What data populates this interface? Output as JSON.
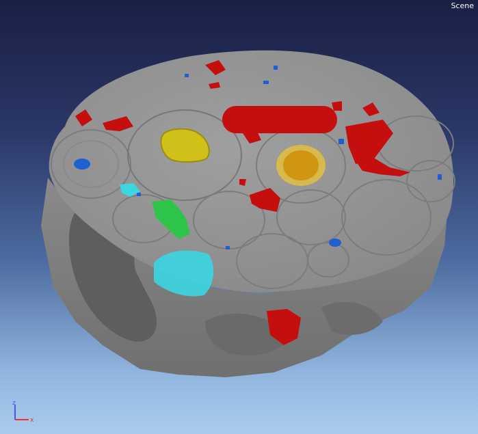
{
  "viewer": {
    "scene_label": "Scene",
    "background_top": "#1a1f45",
    "background_bottom": "#a9cbee"
  },
  "object": {
    "description_colors": {
      "body": "#9a9a9a",
      "shadow": "#5b5b5b",
      "red": "#c80f0f",
      "blue": "#1e5fd0",
      "yellow": "#d4c21a",
      "orange": "#d49a10",
      "green": "#2ec24a",
      "cyan": "#37d9e6"
    }
  },
  "axis_triad": {
    "z_label": "z",
    "x_label": "x",
    "z_color": "#3a5bff",
    "x_color": "#ff2a2a"
  }
}
